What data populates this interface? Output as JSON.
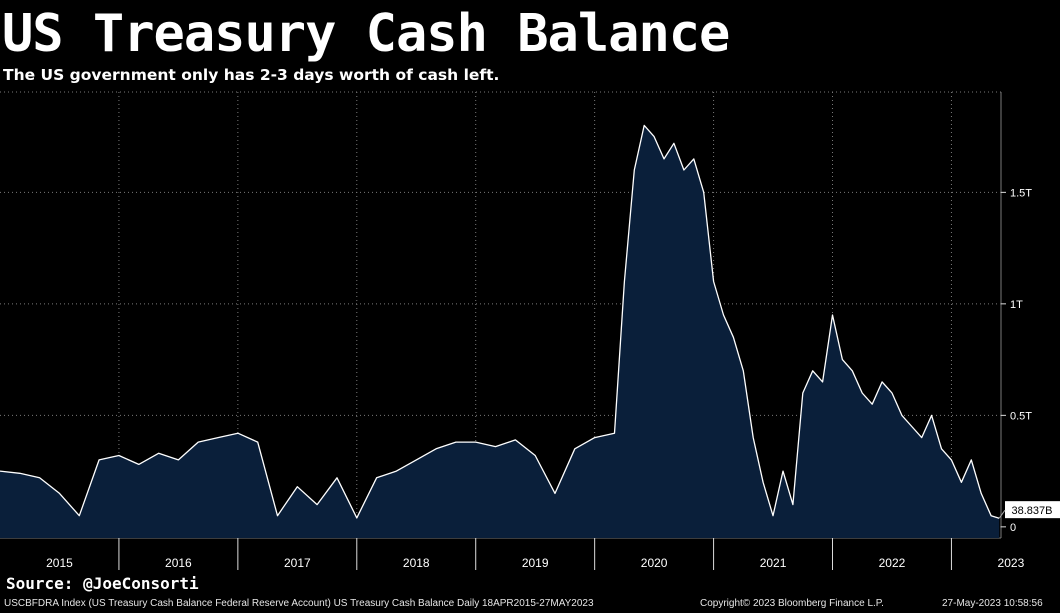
{
  "title": "US Treasury Cash Balance",
  "subtitle": "The US government only has 2-3 days worth of cash left.",
  "source": "Source: @JoeConsorti",
  "footer": {
    "left": "USCBFDRA Index (US Treasury Cash Balance Federal Reserve Account) US Treasury Cash Balance  Daily 18APR2015-27MAY2023",
    "center": "Copyright© 2023 Bloomberg Finance L.P.",
    "right": "27-May-2023 10:58:56"
  },
  "colors": {
    "background": "#000000",
    "area_fill": "#0a1f3a",
    "line": "#ffffff",
    "grid": "#7a7a7a",
    "callout_bg": "#ffffff",
    "callout_text": "#000000"
  },
  "chart_data": {
    "type": "area",
    "title": "US Treasury Cash Balance",
    "xlabel": "",
    "ylabel": "",
    "ylim": [
      -0.05,
      1.95
    ],
    "xlim": [
      "2015-01",
      "2023-06"
    ],
    "grid": true,
    "y_axis_side": "right",
    "yticks": [
      0,
      0.5,
      1.0,
      1.5
    ],
    "ytick_labels": [
      "0",
      "0.5T",
      "1T",
      "1.5T"
    ],
    "xticks": [
      "2015",
      "2016",
      "2017",
      "2018",
      "2019",
      "2020",
      "2021",
      "2022",
      "2023"
    ],
    "last_value_label": "38.837B",
    "series": [
      {
        "unit": "trillion USD",
        "x": [
          "2015-01",
          "2015-03",
          "2015-05",
          "2015-07",
          "2015-09",
          "2015-11",
          "2016-01",
          "2016-03",
          "2016-05",
          "2016-07",
          "2016-09",
          "2016-11",
          "2017-01",
          "2017-03",
          "2017-05",
          "2017-07",
          "2017-09",
          "2017-11",
          "2018-01",
          "2018-03",
          "2018-05",
          "2018-07",
          "2018-09",
          "2018-11",
          "2019-01",
          "2019-03",
          "2019-05",
          "2019-07",
          "2019-09",
          "2019-11",
          "2020-01",
          "2020-03",
          "2020-04",
          "2020-05",
          "2020-06",
          "2020-07",
          "2020-08",
          "2020-09",
          "2020-10",
          "2020-11",
          "2020-12",
          "2021-01",
          "2021-02",
          "2021-03",
          "2021-04",
          "2021-05",
          "2021-06",
          "2021-07",
          "2021-08",
          "2021-09",
          "2021-10",
          "2021-11",
          "2021-12",
          "2022-01",
          "2022-02",
          "2022-03",
          "2022-04",
          "2022-05",
          "2022-06",
          "2022-07",
          "2022-08",
          "2022-09",
          "2022-10",
          "2022-11",
          "2022-12",
          "2023-01",
          "2023-02",
          "2023-03",
          "2023-04",
          "2023-05",
          "2023-05-26"
        ],
        "values": [
          0.25,
          0.24,
          0.22,
          0.15,
          0.05,
          0.3,
          0.32,
          0.28,
          0.33,
          0.3,
          0.38,
          0.4,
          0.42,
          0.38,
          0.05,
          0.18,
          0.1,
          0.22,
          0.04,
          0.22,
          0.25,
          0.3,
          0.35,
          0.38,
          0.38,
          0.36,
          0.39,
          0.32,
          0.15,
          0.35,
          0.4,
          0.42,
          1.1,
          1.6,
          1.8,
          1.75,
          1.65,
          1.72,
          1.6,
          1.65,
          1.5,
          1.1,
          0.95,
          0.85,
          0.7,
          0.4,
          0.2,
          0.05,
          0.25,
          0.1,
          0.6,
          0.7,
          0.65,
          0.95,
          0.75,
          0.7,
          0.6,
          0.55,
          0.65,
          0.6,
          0.5,
          0.45,
          0.4,
          0.5,
          0.35,
          0.3,
          0.2,
          0.3,
          0.15,
          0.05,
          0.039
        ]
      }
    ]
  }
}
